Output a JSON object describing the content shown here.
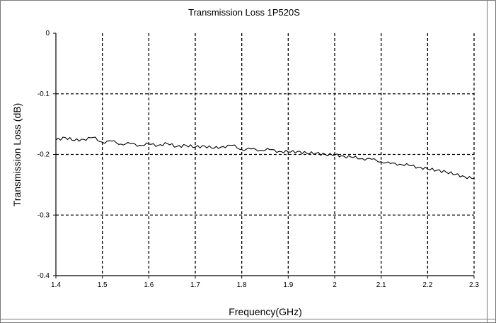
{
  "chart_data": {
    "type": "line",
    "title": "Transmission Loss 1P520S",
    "xlabel": "Frequency(GHz)",
    "ylabel": "Transmission Loss (dB)",
    "xlim": [
      1.4,
      2.3
    ],
    "ylim": [
      -0.4,
      0
    ],
    "xticks": [
      "1.4",
      "1.5",
      "1.6",
      "1.7",
      "1.8",
      "1.9",
      "2",
      "2.1",
      "2.2",
      "2.3"
    ],
    "yticks": [
      "0",
      "-0.1",
      "-0.2",
      "-0.3",
      "-0.4"
    ],
    "grid": true,
    "legend": "none",
    "line_color": "#000000",
    "series": [
      {
        "x": [
          1.4,
          1.42,
          1.44,
          1.46,
          1.48,
          1.5,
          1.52,
          1.54,
          1.56,
          1.58,
          1.6,
          1.62,
          1.64,
          1.66,
          1.68,
          1.7,
          1.72,
          1.74,
          1.76,
          1.78,
          1.8,
          1.82,
          1.84,
          1.86,
          1.88,
          1.9,
          1.92,
          1.94,
          1.96,
          1.98,
          2.0,
          2.02,
          2.04,
          2.06,
          2.08,
          2.1,
          2.12,
          2.14,
          2.16,
          2.18,
          2.2,
          2.22,
          2.24,
          2.26,
          2.28,
          2.3
        ],
        "y": [
          -0.176,
          -0.172,
          -0.177,
          -0.175,
          -0.172,
          -0.18,
          -0.178,
          -0.183,
          -0.182,
          -0.185,
          -0.183,
          -0.185,
          -0.182,
          -0.187,
          -0.185,
          -0.188,
          -0.186,
          -0.19,
          -0.187,
          -0.185,
          -0.192,
          -0.191,
          -0.193,
          -0.192,
          -0.195,
          -0.196,
          -0.195,
          -0.198,
          -0.198,
          -0.2,
          -0.201,
          -0.203,
          -0.205,
          -0.207,
          -0.208,
          -0.212,
          -0.215,
          -0.216,
          -0.218,
          -0.221,
          -0.224,
          -0.226,
          -0.229,
          -0.233,
          -0.237,
          -0.24
        ]
      }
    ]
  }
}
